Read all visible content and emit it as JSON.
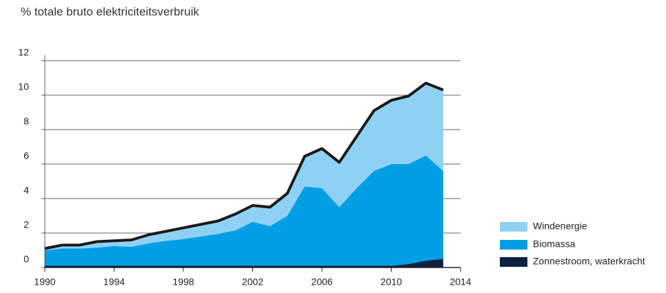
{
  "chart_data": {
    "type": "stacked-area",
    "title": "% totale bruto elektriciteitsverbruik",
    "x": [
      1990,
      1991,
      1992,
      1993,
      1994,
      1995,
      1996,
      1997,
      1998,
      1999,
      2000,
      2001,
      2002,
      2003,
      2004,
      2005,
      2006,
      2007,
      2008,
      2009,
      2010,
      2011,
      2012,
      2013
    ],
    "series": [
      {
        "name": "Zonnestroom, waterkracht",
        "color": "#0c2340",
        "values": [
          0.1,
          0.1,
          0.1,
          0.1,
          0.1,
          0.1,
          0.1,
          0.1,
          0.1,
          0.1,
          0.1,
          0.1,
          0.1,
          0.1,
          0.1,
          0.1,
          0.1,
          0.1,
          0.1,
          0.1,
          0.1,
          0.2,
          0.4,
          0.5
        ]
      },
      {
        "name": "Biomassa",
        "color": "#009fe3",
        "values": [
          0.9,
          1.0,
          1.0,
          1.05,
          1.15,
          1.1,
          1.3,
          1.45,
          1.55,
          1.7,
          1.85,
          2.05,
          2.55,
          2.3,
          2.9,
          4.6,
          4.5,
          3.4,
          4.5,
          5.5,
          5.9,
          5.8,
          6.1,
          5.1
        ]
      },
      {
        "name": "Windenergie",
        "color": "#8fd1f5",
        "values": [
          0.1,
          0.2,
          0.2,
          0.35,
          0.3,
          0.4,
          0.5,
          0.55,
          0.65,
          0.7,
          0.75,
          0.95,
          0.95,
          1.1,
          1.3,
          1.75,
          2.3,
          2.6,
          3.0,
          3.5,
          3.7,
          3.95,
          4.2,
          4.7
        ]
      }
    ],
    "outline_color": "#1a1a1a",
    "xlim": [
      1990,
      2014
    ],
    "xticks": [
      1990,
      1994,
      1998,
      2002,
      2006,
      2010,
      2014
    ],
    "ylim": [
      0,
      12
    ],
    "yticks": [
      0,
      2,
      4,
      6,
      8,
      10,
      12
    ],
    "grid": true,
    "legend": "right"
  }
}
